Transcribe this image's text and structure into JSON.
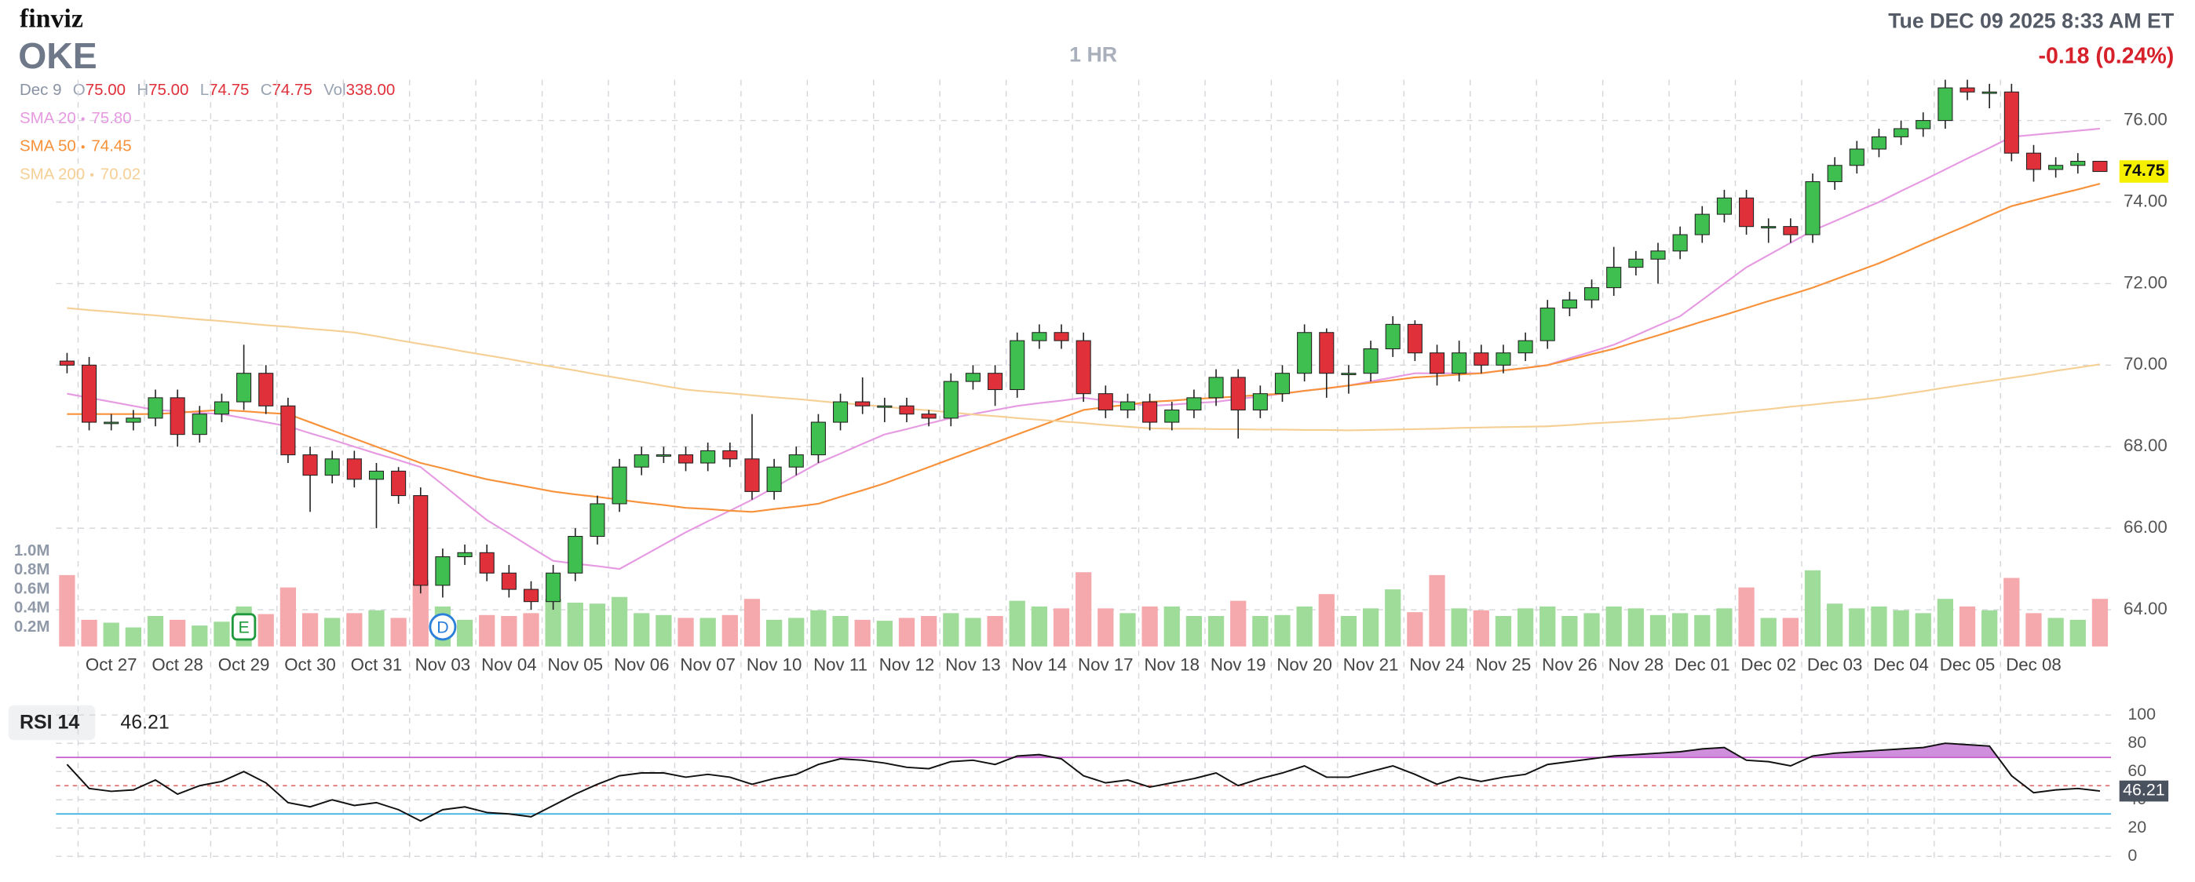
{
  "header": {
    "logo": "finviz",
    "ticker": "OKE",
    "interval": "1 HR",
    "datetime": "Tue DEC 09 2025 8:33 AM ET",
    "change": "-0.18 (0.24%)",
    "ohlc": {
      "date": "Dec 9",
      "items": [
        {
          "name": "O",
          "value": 75,
          "label": "75.00"
        },
        {
          "name": "H",
          "value": 75,
          "label": "75.00"
        },
        {
          "name": "L",
          "value": 74.75,
          "label": "74.75"
        },
        {
          "name": "C",
          "value": 74.75,
          "label": "74.75"
        },
        {
          "name": "Vol",
          "value": 338,
          "label": "338.00"
        }
      ]
    }
  },
  "chart_data": [
    {
      "type": "candlestick",
      "categories": [
        null,
        "Oct 27",
        null,
        null,
        "Oct 28",
        null,
        null,
        "Oct 29",
        null,
        null,
        "Oct 30",
        null,
        null,
        "Oct 31",
        null,
        null,
        "Nov 03",
        null,
        null,
        "Nov 04",
        null,
        null,
        "Nov 05",
        null,
        null,
        "Nov 06",
        null,
        null,
        "Nov 07",
        null,
        null,
        "Nov 10",
        null,
        null,
        "Nov 11",
        null,
        null,
        "Nov 12",
        null,
        null,
        "Nov 13",
        null,
        null,
        "Nov 14",
        null,
        null,
        "Nov 17",
        null,
        null,
        "Nov 18",
        null,
        null,
        "Nov 19",
        null,
        null,
        "Nov 20",
        null,
        null,
        "Nov 21",
        null,
        null,
        "Nov 24",
        null,
        null,
        "Nov 25",
        null,
        null,
        "Nov 26",
        null,
        null,
        "Nov 28",
        null,
        null,
        "Dec 01",
        null,
        null,
        "Dec 02",
        null,
        null,
        "Dec 03",
        null,
        null,
        "Dec 04",
        null,
        null,
        "Dec 05",
        null,
        null,
        "Dec 08",
        null,
        null,
        null,
        null
      ],
      "open": [
        70.1,
        70.0,
        68.6,
        68.6,
        68.7,
        69.2,
        68.3,
        68.8,
        69.1,
        69.8,
        69.0,
        67.8,
        67.3,
        67.7,
        67.2,
        67.4,
        66.8,
        64.6,
        65.3,
        65.4,
        64.9,
        64.5,
        64.2,
        64.9,
        65.8,
        66.6,
        67.5,
        67.8,
        67.8,
        67.6,
        67.9,
        67.7,
        66.9,
        67.5,
        67.8,
        68.6,
        69.1,
        69.0,
        69.0,
        68.8,
        68.7,
        69.6,
        69.8,
        69.4,
        70.6,
        70.8,
        70.6,
        69.3,
        68.9,
        69.1,
        68.6,
        68.9,
        69.2,
        69.7,
        68.9,
        69.3,
        69.8,
        70.8,
        69.8,
        69.8,
        70.4,
        71.0,
        70.3,
        69.8,
        70.3,
        70.0,
        70.3,
        70.6,
        71.4,
        71.6,
        71.9,
        72.4,
        72.6,
        72.8,
        73.2,
        73.7,
        74.1,
        73.4,
        73.4,
        73.2,
        74.5,
        74.9,
        75.3,
        75.6,
        75.8,
        76.0,
        76.8,
        76.7,
        76.7,
        75.2,
        74.8,
        74.9,
        75.0
      ],
      "high": [
        70.3,
        70.2,
        68.8,
        68.9,
        69.4,
        69.4,
        69.0,
        69.3,
        70.5,
        70.0,
        69.2,
        68.0,
        67.9,
        67.9,
        67.6,
        67.5,
        67.0,
        65.5,
        65.6,
        65.6,
        65.1,
        64.7,
        65.1,
        66.0,
        66.8,
        67.7,
        68.0,
        68.0,
        68.0,
        68.1,
        68.1,
        68.8,
        67.7,
        68.0,
        68.8,
        69.3,
        69.7,
        69.2,
        69.2,
        68.9,
        69.8,
        70.0,
        70.0,
        70.8,
        71.0,
        71.0,
        70.8,
        69.5,
        69.3,
        69.3,
        69.1,
        69.4,
        69.9,
        69.9,
        69.5,
        70.0,
        71.0,
        70.9,
        70.0,
        70.6,
        71.2,
        71.1,
        70.5,
        70.6,
        70.5,
        70.5,
        70.8,
        71.6,
        71.8,
        72.1,
        72.9,
        72.8,
        73.0,
        73.4,
        73.9,
        74.3,
        74.3,
        73.6,
        73.6,
        74.7,
        75.1,
        75.5,
        75.8,
        76.0,
        76.2,
        77.0,
        77.0,
        76.9,
        76.9,
        75.4,
        75.1,
        75.2,
        75.0
      ],
      "low": [
        69.8,
        68.4,
        68.4,
        68.4,
        68.5,
        68.0,
        68.1,
        68.6,
        68.9,
        68.8,
        67.6,
        66.4,
        67.1,
        67.0,
        66.0,
        66.6,
        64.4,
        64.3,
        65.1,
        64.7,
        64.3,
        64.0,
        64.0,
        64.7,
        65.6,
        66.4,
        67.3,
        67.6,
        67.4,
        67.4,
        67.5,
        66.7,
        66.7,
        67.3,
        67.6,
        68.4,
        68.8,
        68.6,
        68.6,
        68.5,
        68.5,
        69.4,
        69.0,
        69.2,
        70.4,
        70.4,
        69.1,
        68.7,
        68.7,
        68.4,
        68.4,
        68.7,
        69.0,
        68.2,
        68.7,
        69.1,
        69.6,
        69.2,
        69.3,
        69.6,
        70.2,
        70.1,
        69.5,
        69.6,
        69.8,
        69.8,
        70.1,
        70.4,
        71.2,
        71.4,
        71.7,
        72.2,
        72.0,
        72.6,
        73.0,
        73.5,
        73.2,
        73.0,
        73.0,
        73.0,
        74.3,
        74.7,
        75.1,
        75.4,
        75.6,
        75.8,
        76.5,
        76.3,
        75.0,
        74.5,
        74.6,
        74.7,
        74.75
      ],
      "close": [
        70.0,
        68.6,
        68.6,
        68.7,
        69.2,
        68.3,
        68.8,
        69.1,
        69.8,
        69.0,
        67.8,
        67.3,
        67.7,
        67.2,
        67.4,
        66.8,
        64.6,
        65.3,
        65.4,
        64.9,
        64.5,
        64.2,
        64.9,
        65.8,
        66.6,
        67.5,
        67.8,
        67.8,
        67.6,
        67.9,
        67.7,
        66.9,
        67.5,
        67.8,
        68.6,
        69.1,
        69.0,
        69.0,
        68.8,
        68.7,
        69.6,
        69.8,
        69.4,
        70.6,
        70.8,
        70.6,
        69.3,
        68.9,
        69.1,
        68.6,
        68.9,
        69.2,
        69.7,
        68.9,
        69.3,
        69.8,
        70.8,
        69.8,
        69.8,
        70.4,
        71.0,
        70.3,
        69.8,
        70.3,
        70.0,
        70.3,
        70.6,
        71.4,
        71.6,
        71.9,
        72.4,
        72.6,
        72.8,
        73.2,
        73.7,
        74.1,
        73.4,
        73.4,
        73.2,
        74.5,
        74.9,
        75.3,
        75.6,
        75.8,
        76.0,
        76.8,
        76.7,
        76.7,
        75.2,
        74.8,
        74.9,
        75.0,
        74.75
      ],
      "up_color": "#3fbf4f",
      "down_color": "#e0303a",
      "ylim": [
        63.1,
        77.0
      ],
      "yticks": [
        {
          "value": 64,
          "label": "64.00"
        },
        {
          "value": 66,
          "label": "66.00"
        },
        {
          "value": 68,
          "label": "68.00"
        },
        {
          "value": 70,
          "label": "70.00"
        },
        {
          "value": 72,
          "label": "72.00"
        },
        {
          "value": 74,
          "label": "74.00"
        },
        {
          "value": 76,
          "label": "76.00"
        }
      ],
      "grid": true,
      "overlays": [
        {
          "name": "SMA 20",
          "legend_value": "75.80",
          "color": "#e69ae2",
          "values": [
            69.3,
            69.2,
            69.1,
            69.0,
            68.9,
            68.87,
            68.83,
            68.8,
            68.7,
            68.6,
            68.5,
            68.33,
            68.17,
            68.0,
            67.83,
            67.67,
            67.5,
            67.07,
            66.63,
            66.2,
            65.87,
            65.53,
            65.2,
            65.13,
            65.07,
            65.0,
            65.3,
            65.6,
            65.9,
            66.17,
            66.43,
            66.7,
            67.0,
            67.3,
            67.6,
            67.83,
            68.07,
            68.3,
            68.43,
            68.57,
            68.7,
            68.8,
            68.9,
            69.0,
            69.07,
            69.13,
            69.2,
            69.13,
            69.07,
            69.0,
            69.03,
            69.07,
            69.1,
            69.17,
            69.23,
            69.3,
            69.37,
            69.43,
            69.5,
            69.6,
            69.7,
            69.8,
            69.8,
            69.8,
            69.8,
            69.87,
            69.93,
            70.0,
            70.17,
            70.33,
            70.5,
            70.73,
            70.97,
            71.2,
            71.6,
            72.0,
            72.4,
            72.7,
            73.0,
            73.3,
            73.53,
            73.77,
            74.0,
            74.27,
            74.53,
            74.8,
            75.07,
            75.33,
            75.6,
            75.65,
            75.7,
            75.75,
            75.8
          ]
        },
        {
          "name": "SMA 50",
          "legend_value": "74.45",
          "color": "#f7913a",
          "values": [
            68.8,
            68.8,
            68.8,
            68.8,
            68.8,
            68.83,
            68.87,
            68.9,
            68.87,
            68.83,
            68.8,
            68.6,
            68.4,
            68.2,
            68.0,
            67.8,
            67.6,
            67.47,
            67.33,
            67.2,
            67.1,
            67.0,
            66.9,
            66.83,
            66.77,
            66.7,
            66.63,
            66.57,
            66.5,
            66.47,
            66.43,
            66.4,
            66.47,
            66.53,
            66.6,
            66.77,
            66.93,
            67.1,
            67.3,
            67.5,
            67.7,
            67.9,
            68.1,
            68.3,
            68.5,
            68.7,
            68.9,
            68.97,
            69.03,
            69.1,
            69.13,
            69.17,
            69.2,
            69.23,
            69.27,
            69.3,
            69.37,
            69.43,
            69.5,
            69.57,
            69.63,
            69.7,
            69.73,
            69.77,
            69.8,
            69.87,
            69.93,
            70.0,
            70.13,
            70.27,
            70.4,
            70.57,
            70.73,
            70.9,
            71.07,
            71.23,
            71.4,
            71.57,
            71.73,
            71.9,
            72.1,
            72.3,
            72.5,
            72.73,
            72.97,
            73.2,
            73.43,
            73.67,
            73.9,
            74.04,
            74.18,
            74.31,
            74.45
          ]
        },
        {
          "name": "SMA 200",
          "legend_value": "70.02",
          "color": "#f6cf95",
          "values": [
            71.4,
            71.35,
            71.31,
            71.26,
            71.22,
            71.17,
            71.12,
            71.08,
            71.03,
            70.98,
            70.94,
            70.89,
            70.85,
            70.8,
            70.71,
            70.61,
            70.52,
            70.43,
            70.33,
            70.24,
            70.15,
            70.05,
            69.96,
            69.87,
            69.77,
            69.68,
            69.59,
            69.49,
            69.4,
            69.35,
            69.31,
            69.26,
            69.21,
            69.17,
            69.12,
            69.07,
            69.03,
            68.98,
            68.93,
            68.89,
            68.84,
            68.79,
            68.75,
            68.7,
            68.66,
            68.62,
            68.58,
            68.53,
            68.49,
            68.45,
            68.44,
            68.44,
            68.43,
            68.43,
            68.42,
            68.42,
            68.41,
            68.41,
            68.4,
            68.41,
            68.42,
            68.43,
            68.44,
            68.46,
            68.47,
            68.48,
            68.49,
            68.5,
            68.53,
            68.57,
            68.6,
            68.63,
            68.67,
            68.7,
            68.76,
            68.81,
            68.87,
            68.92,
            68.98,
            69.03,
            69.09,
            69.14,
            69.2,
            69.28,
            69.36,
            69.45,
            69.53,
            69.61,
            69.69,
            69.77,
            69.86,
            69.94,
            70.02
          ]
        }
      ],
      "volume": {
        "values": [
          750000,
          280000,
          250000,
          200000,
          320000,
          280000,
          220000,
          260000,
          420000,
          340000,
          620000,
          350000,
          300000,
          350000,
          380000,
          300000,
          700000,
          420000,
          280000,
          330000,
          320000,
          350000,
          500000,
          460000,
          450000,
          520000,
          350000,
          330000,
          300000,
          300000,
          330000,
          500000,
          280000,
          300000,
          380000,
          320000,
          280000,
          270000,
          300000,
          320000,
          350000,
          300000,
          320000,
          480000,
          420000,
          400000,
          780000,
          400000,
          350000,
          420000,
          420000,
          320000,
          320000,
          480000,
          320000,
          330000,
          420000,
          550000,
          320000,
          400000,
          600000,
          360000,
          750000,
          400000,
          380000,
          320000,
          400000,
          420000,
          320000,
          350000,
          420000,
          400000,
          330000,
          350000,
          330000,
          400000,
          620000,
          300000,
          300000,
          800000,
          450000,
          400000,
          420000,
          380000,
          350000,
          500000,
          420000,
          380000,
          720000,
          350000,
          300000,
          280000,
          500000
        ],
        "ylim": [
          0,
          1000000
        ],
        "yticks": [
          {
            "value": 200000,
            "label": "0.2M"
          },
          {
            "value": 400000,
            "label": "0.4M"
          },
          {
            "value": 600000,
            "label": "0.6M"
          },
          {
            "value": 800000,
            "label": "0.8M"
          },
          {
            "value": 1000000,
            "label": "1.0M"
          }
        ],
        "up_color": "#9fdc9a",
        "down_color": "#f6a9ad"
      },
      "events": [
        {
          "label": "E",
          "category": "Oct 29",
          "shape": "square",
          "color": "#1e9a3c"
        },
        {
          "label": "D",
          "category": "Nov 03",
          "shape": "circle",
          "color": "#2a7fd8"
        }
      ]
    },
    {
      "type": "line",
      "title": "RSI 14",
      "color": "#111111",
      "values": [
        65,
        48,
        46,
        47,
        54,
        44,
        50,
        53,
        60,
        52,
        38,
        35,
        40,
        36,
        38,
        33,
        25,
        33,
        35,
        31,
        30,
        28,
        36,
        44,
        51,
        57,
        59,
        59,
        56,
        58,
        56,
        51,
        55,
        58,
        65,
        69,
        68,
        66,
        63,
        62,
        67,
        68,
        65,
        71,
        72,
        69,
        57,
        52,
        54,
        49,
        52,
        55,
        59,
        50,
        55,
        59,
        64,
        56,
        56,
        60,
        64,
        58,
        51,
        56,
        53,
        56,
        58,
        65,
        67,
        69,
        71,
        72,
        73,
        74,
        76,
        77,
        68,
        67,
        64,
        71,
        73,
        74,
        75,
        76,
        77,
        80,
        79,
        78,
        57,
        45,
        47,
        48,
        46.21
      ],
      "ylim": [
        0,
        100
      ],
      "yticks": [
        0,
        20,
        40,
        60,
        80,
        100
      ],
      "grid": true,
      "levels": [
        {
          "value": 70,
          "color": "#c45ccc"
        },
        {
          "value": 50,
          "color": "#e07070"
        },
        {
          "value": 30,
          "color": "#35aee0"
        }
      ],
      "overbought_color": "#cf8fdc"
    }
  ]
}
